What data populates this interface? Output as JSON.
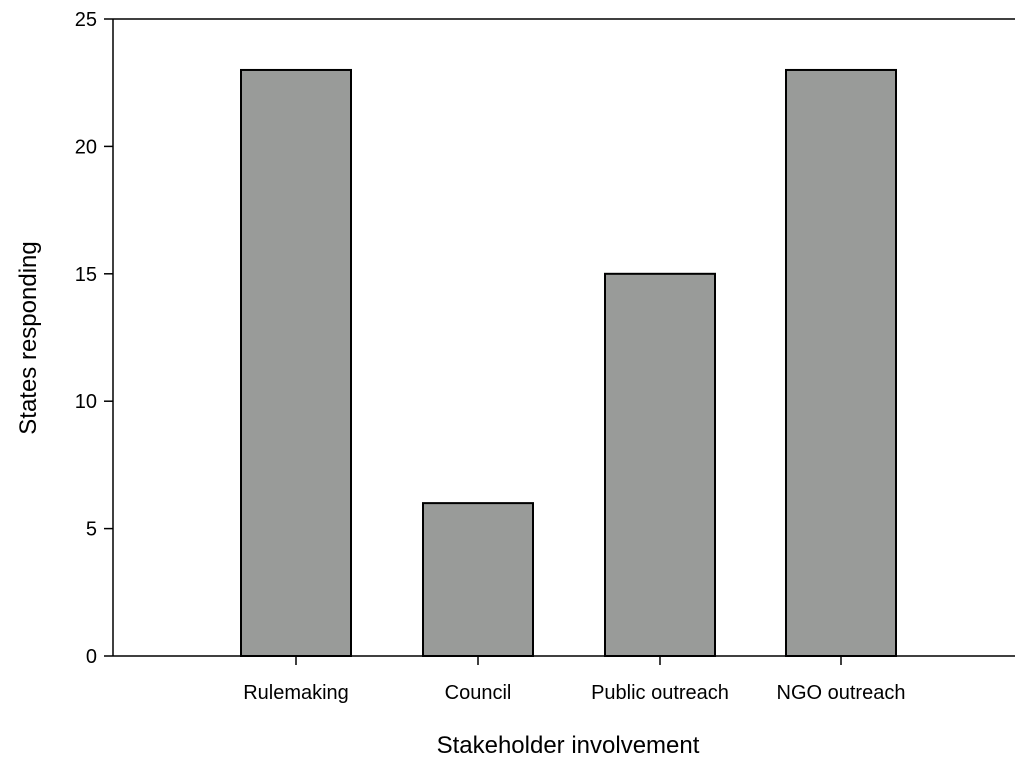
{
  "chart_data": {
    "type": "bar",
    "categories": [
      "Rulemaking",
      "Council",
      "Public outreach",
      "NGO outreach"
    ],
    "values": [
      23,
      6,
      15,
      23
    ],
    "xlabel": "Stakeholder involvement",
    "ylabel": "States responding",
    "ylim": [
      0,
      25
    ],
    "yticks": [
      0,
      5,
      10,
      15,
      20,
      25
    ],
    "bar_color": "#999b99",
    "grid": false,
    "legend": "none"
  }
}
